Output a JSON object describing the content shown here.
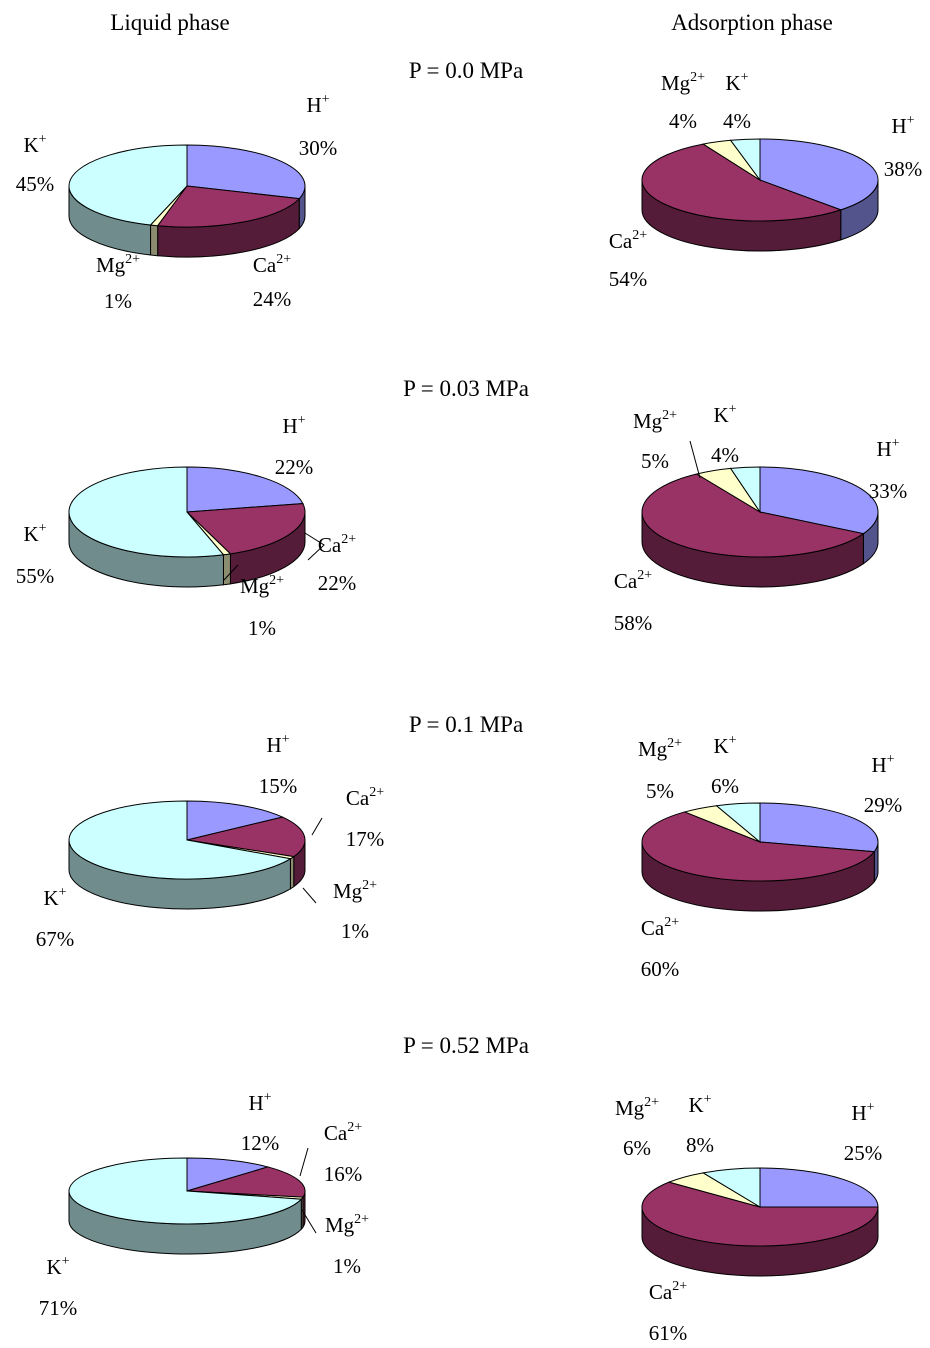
{
  "headers": {
    "left": "Liquid phase",
    "right": "Adsorption phase"
  },
  "colors": {
    "H": "#9999ff",
    "Ca": "#993366",
    "Mg": "#ffffcc",
    "K": "#ccffff"
  },
  "chart_data": {
    "type": "pie",
    "ions": [
      {
        "key": "H",
        "base": "H",
        "sup": "+"
      },
      {
        "key": "Ca",
        "base": "Ca",
        "sup": "2+"
      },
      {
        "key": "Mg",
        "base": "Mg",
        "sup": "2+"
      },
      {
        "key": "K",
        "base": "K",
        "sup": "+"
      }
    ],
    "panels": [
      {
        "pressure": "P = 0.0 MPa",
        "liquid": {
          "H": 30,
          "Ca": 24,
          "Mg": 1,
          "K": 45
        },
        "adsorption": {
          "H": 38,
          "Ca": 54,
          "Mg": 4,
          "K": 4
        }
      },
      {
        "pressure": "P = 0.03 MPa",
        "liquid": {
          "H": 22,
          "Ca": 22,
          "Mg": 1,
          "K": 55
        },
        "adsorption": {
          "H": 33,
          "Ca": 58,
          "Mg": 5,
          "K": 4
        }
      },
      {
        "pressure": "P = 0.1 MPa",
        "liquid": {
          "H": 15,
          "Ca": 17,
          "Mg": 1,
          "K": 67
        },
        "adsorption": {
          "H": 29,
          "Ca": 60,
          "Mg": 5,
          "K": 6
        }
      },
      {
        "pressure": "P = 0.52 MPa",
        "liquid": {
          "H": 12,
          "Ca": 16,
          "Mg": 1,
          "K": 71
        },
        "adsorption": {
          "H": 25,
          "Ca": 61,
          "Mg": 6,
          "K": 8
        }
      }
    ]
  }
}
